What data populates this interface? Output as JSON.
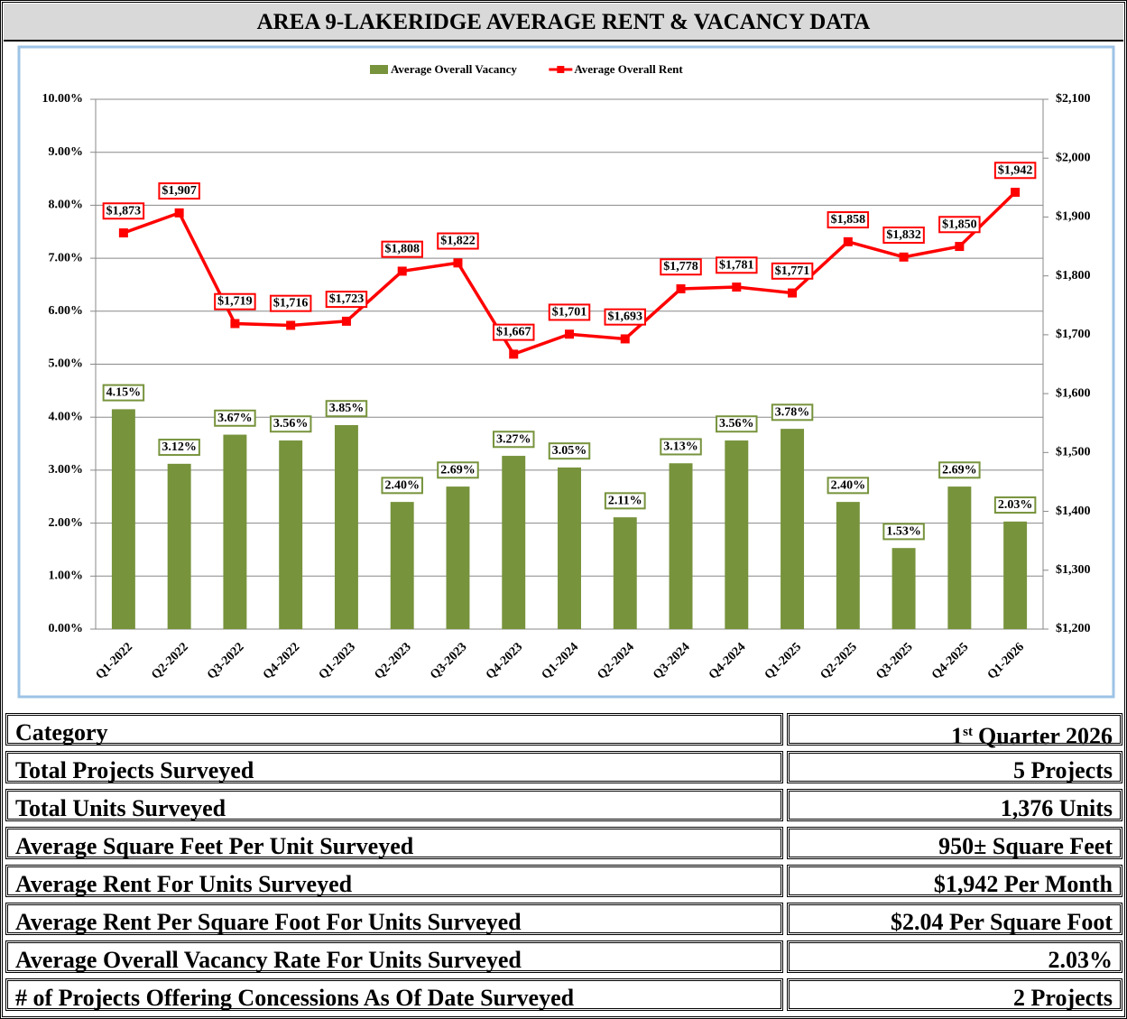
{
  "chart_data": {
    "type": "bar",
    "title": "AREA 9-LAKERIDGE AVERAGE RENT & VACANCY DATA",
    "categories": [
      "Q1-2022",
      "Q2-2022",
      "Q3-2022",
      "Q4-2022",
      "Q1-2023",
      "Q2-2023",
      "Q3-2023",
      "Q4-2023",
      "Q1-2024",
      "Q2-2024",
      "Q3-2024",
      "Q4-2024",
      "Q1-2025",
      "Q2-2025",
      "Q3-2025",
      "Q4-2025",
      "Q1-2026"
    ],
    "series": [
      {
        "name": "Average Overall Vacancy",
        "type": "bar",
        "color": "#77933c",
        "values": [
          4.15,
          3.12,
          3.67,
          3.56,
          3.85,
          2.4,
          2.69,
          3.27,
          3.05,
          2.11,
          3.13,
          3.56,
          3.78,
          2.4,
          1.53,
          2.69,
          2.03
        ],
        "value_labels": [
          "4.15%",
          "3.12%",
          "3.67%",
          "3.56%",
          "3.85%",
          "2.40%",
          "2.69%",
          "3.27%",
          "3.05%",
          "2.11%",
          "3.13%",
          "3.56%",
          "3.78%",
          "2.40%",
          "1.53%",
          "2.69%",
          "2.03%"
        ]
      },
      {
        "name": "Average Overall Rent",
        "type": "line",
        "axis": "y2",
        "color": "#ff0000",
        "values": [
          1873,
          1907,
          1719,
          1716,
          1723,
          1808,
          1822,
          1667,
          1701,
          1693,
          1778,
          1781,
          1771,
          1858,
          1832,
          1850,
          1942
        ],
        "value_labels": [
          "$1,873",
          "$1,907",
          "$1,719",
          "$1,716",
          "$1,723",
          "$1,808",
          "$1,822",
          "$1,667",
          "$1,701",
          "$1,693",
          "$1,778",
          "$1,781",
          "$1,771",
          "$1,858",
          "$1,832",
          "$1,850",
          "$1,942"
        ]
      }
    ],
    "ylim": [
      0,
      10
    ],
    "yticks": [
      {
        "value": 0,
        "label": "0.00%"
      },
      {
        "value": 1,
        "label": "1.00%"
      },
      {
        "value": 2,
        "label": "2.00%"
      },
      {
        "value": 3,
        "label": "3.00%"
      },
      {
        "value": 4,
        "label": "4.00%"
      },
      {
        "value": 5,
        "label": "5.00%"
      },
      {
        "value": 6,
        "label": "6.00%"
      },
      {
        "value": 7,
        "label": "7.00%"
      },
      {
        "value": 8,
        "label": "8.00%"
      },
      {
        "value": 9,
        "label": "9.00%"
      },
      {
        "value": 10,
        "label": "10.00%"
      }
    ],
    "y2lim": [
      1200,
      2100
    ],
    "y2ticks": [
      {
        "value": 1200,
        "label": "$1,200"
      },
      {
        "value": 1300,
        "label": "$1,300"
      },
      {
        "value": 1400,
        "label": "$1,400"
      },
      {
        "value": 1500,
        "label": "$1,500"
      },
      {
        "value": 1600,
        "label": "$1,600"
      },
      {
        "value": 1700,
        "label": "$1,700"
      },
      {
        "value": 1800,
        "label": "$1,800"
      },
      {
        "value": 1900,
        "label": "$1,900"
      },
      {
        "value": 2000,
        "label": "$2,000"
      },
      {
        "value": 2100,
        "label": "$2,100"
      }
    ],
    "grid": true,
    "legend": "top"
  },
  "table": {
    "header": [
      {
        "text": "Category"
      },
      {
        "number": "1",
        "suffix": "st",
        "rest": "Quarter 2026"
      }
    ],
    "rows": [
      [
        "Total Projects Surveyed",
        "5 Projects"
      ],
      [
        "Total Units Surveyed",
        "1,376 Units"
      ],
      [
        "Average Square Feet Per Unit Surveyed",
        "950± Square Feet"
      ],
      [
        "Average Rent For Units Surveyed",
        "$1,942 Per Month"
      ],
      [
        "Average Rent Per Square Foot For Units Surveyed",
        "$2.04 Per Square Foot"
      ],
      [
        "Average Overall Vacancy Rate For Units Surveyed",
        "2.03%"
      ],
      [
        "# of Projects Offering Concessions As Of Date Surveyed",
        "2 Projects"
      ]
    ]
  }
}
